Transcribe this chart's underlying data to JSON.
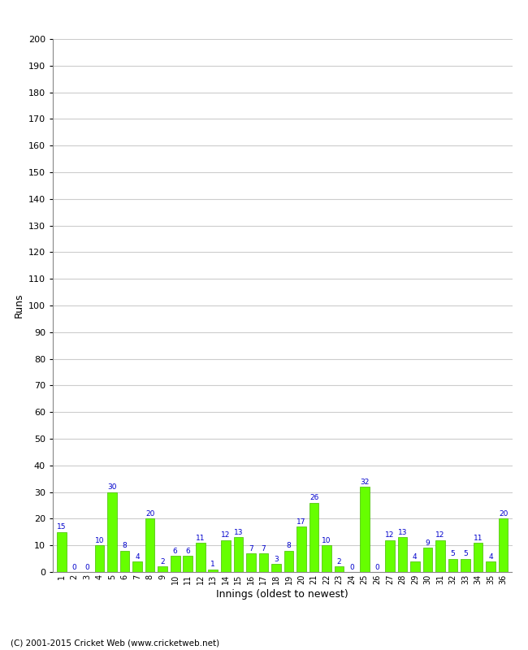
{
  "innings": [
    1,
    2,
    3,
    4,
    5,
    6,
    7,
    8,
    9,
    10,
    11,
    12,
    13,
    14,
    15,
    16,
    17,
    18,
    19,
    20,
    21,
    22,
    23,
    24,
    25,
    26,
    27,
    28,
    29,
    30,
    31,
    32,
    33,
    34,
    35,
    36
  ],
  "values": [
    15,
    0,
    0,
    10,
    30,
    8,
    4,
    20,
    2,
    6,
    6,
    11,
    1,
    12,
    13,
    7,
    7,
    3,
    8,
    17,
    26,
    10,
    2,
    0,
    32,
    0,
    12,
    13,
    4,
    9,
    12,
    5,
    5,
    11,
    4,
    20
  ],
  "bar_color": "#66ff00",
  "bar_edge_color": "#44bb00",
  "label_color": "#0000cc",
  "xlabel": "Innings (oldest to newest)",
  "ylabel": "Runs",
  "ylim": [
    0,
    200
  ],
  "yticks": [
    0,
    10,
    20,
    30,
    40,
    50,
    60,
    70,
    80,
    90,
    100,
    110,
    120,
    130,
    140,
    150,
    160,
    170,
    180,
    190,
    200
  ],
  "background_color": "#ffffff",
  "grid_color": "#cccccc",
  "footer": "(C) 2001-2015 Cricket Web (www.cricketweb.net)"
}
